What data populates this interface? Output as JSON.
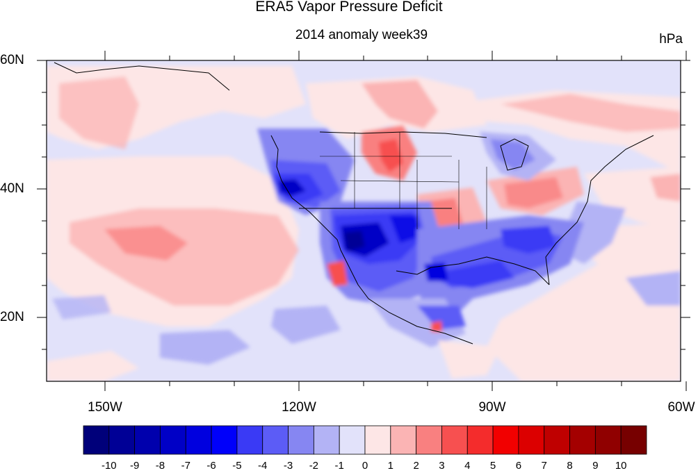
{
  "title": "ERA5 Vapor Pressure Deficit",
  "subtitle": "2014 anomaly week39",
  "units": "hPa",
  "map": {
    "lon_range": [
      -159,
      -60
    ],
    "lat_range": [
      10,
      60
    ],
    "lat_labels": [
      "60N",
      "40N",
      "20N"
    ],
    "lon_labels": [
      "150W",
      "120W",
      "90W",
      "60W"
    ],
    "land_boundaries": "coastlines, US states"
  },
  "colorbar": {
    "labels": [
      "-10",
      "-9",
      "-8",
      "-7",
      "-6",
      "-5",
      "-4",
      "-3",
      "-2",
      "-1",
      "0",
      "1",
      "2",
      "3",
      "4",
      "5",
      "6",
      "7",
      "8",
      "9",
      "10"
    ],
    "colors": [
      "#00007a",
      "#000096",
      "#0000ad",
      "#0000c6",
      "#0000df",
      "#0000fa",
      "#3a3af5",
      "#5c5cf6",
      "#8686f2",
      "#b3b3f5",
      "#e2e2fa",
      "#fde6e6",
      "#fbb4b4",
      "#f98080",
      "#f75050",
      "#f42c2c",
      "#f20000",
      "#dc0000",
      "#bf0000",
      "#a40000",
      "#900000",
      "#770000"
    ]
  }
}
